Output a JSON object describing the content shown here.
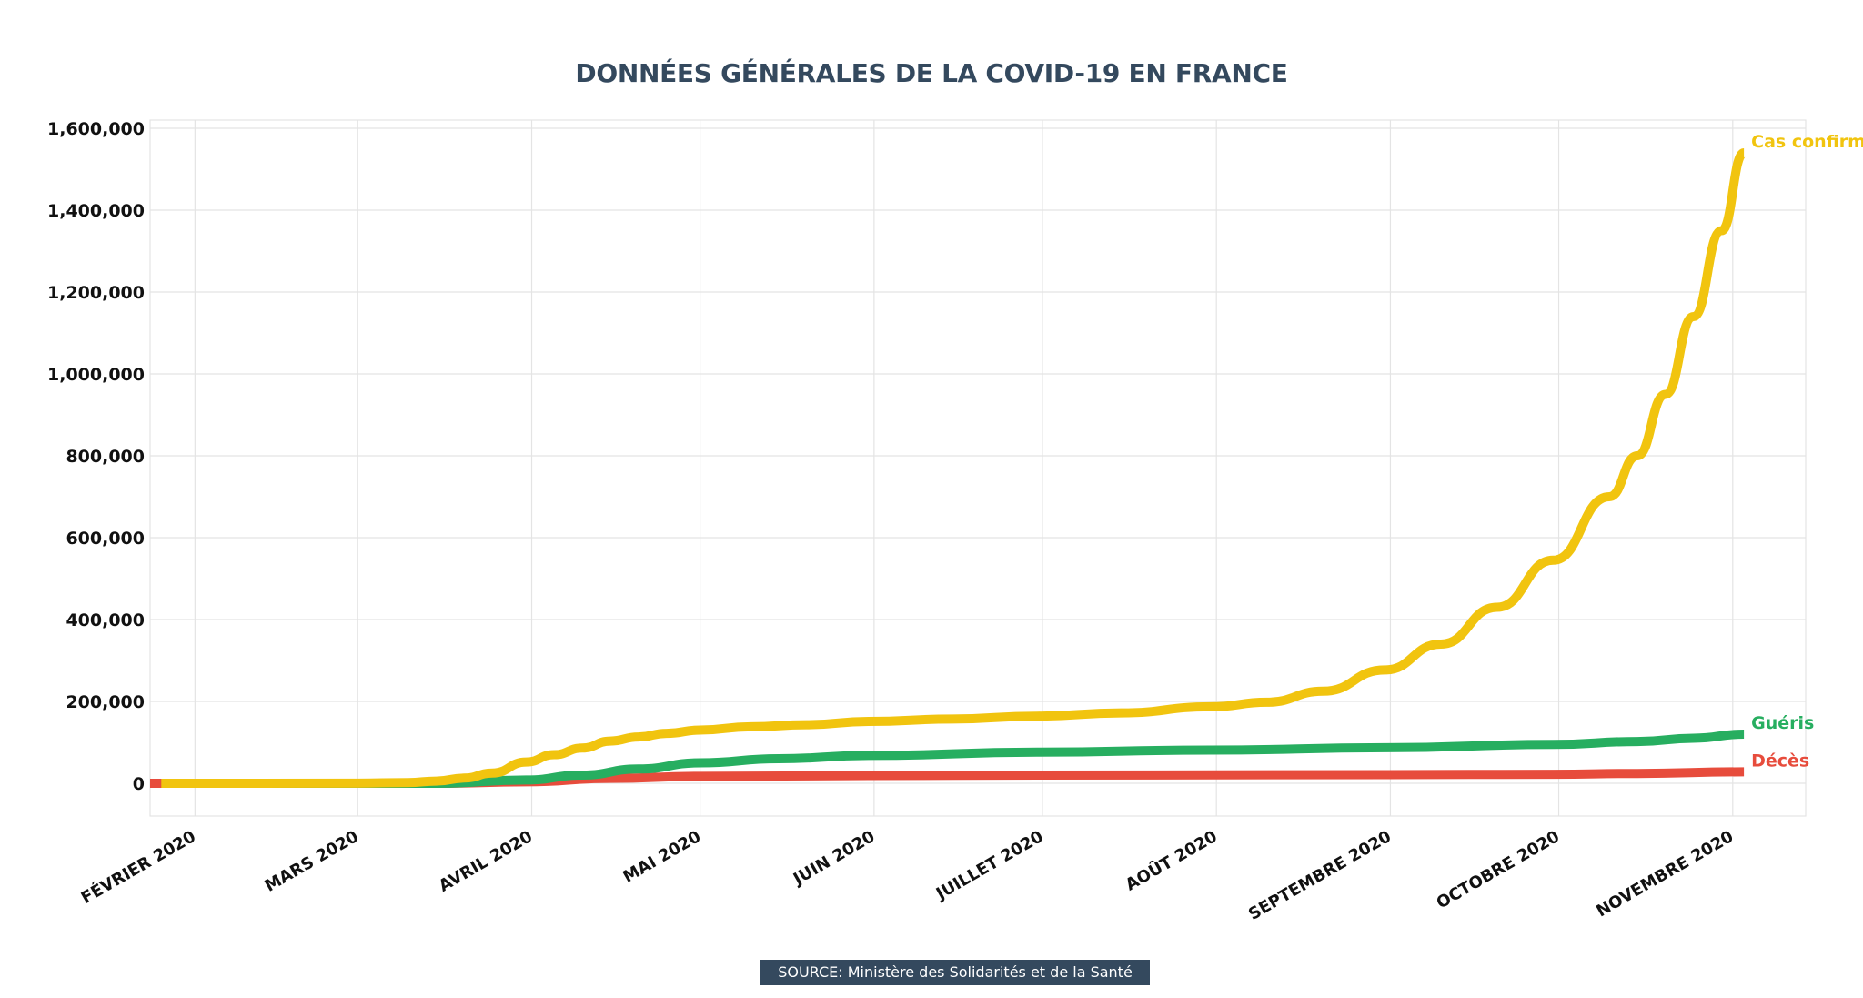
{
  "title": "DONNÉES GÉNÉRALES DE LA COVID-19 EN FRANCE",
  "source": "SOURCE: Ministère des Solidarités et de la Santé",
  "colors": {
    "title": "#34495e",
    "cas_confirmes": "#f1c40f",
    "gueris": "#27ae60",
    "deces": "#e74c3c",
    "source_bg": "#34495e"
  },
  "chart_data": {
    "type": "line",
    "title": "DONNÉES GÉNÉRALES DE LA COVID-19 EN FRANCE",
    "xlabel": "",
    "ylabel": "",
    "x_range": [
      "2020-01-24",
      "2020-11-14"
    ],
    "ylim": [
      -80000,
      1620000
    ],
    "y_ticks": [
      0,
      200000,
      400000,
      600000,
      800000,
      1000000,
      1200000,
      1400000,
      1600000
    ],
    "y_tick_labels": [
      "0",
      "200,000",
      "400,000",
      "600,000",
      "800,000",
      "1,000,000",
      "1,200,000",
      "1,400,000",
      "1,600,000"
    ],
    "x_ticks": [
      "2020-02-01",
      "2020-03-01",
      "2020-04-01",
      "2020-05-01",
      "2020-06-01",
      "2020-07-01",
      "2020-08-01",
      "2020-09-01",
      "2020-10-01",
      "2020-11-01"
    ],
    "x_tick_labels": [
      "FÉVRIER 2020",
      "MARS 2020",
      "AVRIL 2020",
      "MAI 2020",
      "JUIN 2020",
      "JUILLET 2020",
      "AOÛT 2020",
      "SEPTEMBRE 2020",
      "OCTOBRE 2020",
      "NOVEMBRE 2020"
    ],
    "grid": true,
    "legend": "labels at line ends",
    "series": [
      {
        "name": "Cas confirmés",
        "color": "#f1c40f",
        "points": [
          [
            "2020-01-26",
            0
          ],
          [
            "2020-03-01",
            130
          ],
          [
            "2020-03-10",
            1800
          ],
          [
            "2020-03-15",
            5400
          ],
          [
            "2020-03-20",
            12600
          ],
          [
            "2020-03-25",
            25200
          ],
          [
            "2020-03-31",
            52000
          ],
          [
            "2020-04-05",
            70000
          ],
          [
            "2020-04-10",
            86000
          ],
          [
            "2020-04-15",
            103000
          ],
          [
            "2020-04-20",
            113000
          ],
          [
            "2020-04-25",
            122000
          ],
          [
            "2020-05-01",
            130000
          ],
          [
            "2020-05-10",
            138000
          ],
          [
            "2020-05-20",
            143000
          ],
          [
            "2020-05-31",
            151000
          ],
          [
            "2020-06-15",
            157000
          ],
          [
            "2020-06-30",
            164000
          ],
          [
            "2020-07-15",
            172000
          ],
          [
            "2020-07-31",
            187000
          ],
          [
            "2020-08-10",
            198000
          ],
          [
            "2020-08-20",
            225000
          ],
          [
            "2020-08-31",
            277000
          ],
          [
            "2020-09-10",
            340000
          ],
          [
            "2020-09-20",
            430000
          ],
          [
            "2020-09-30",
            545000
          ],
          [
            "2020-10-10",
            700000
          ],
          [
            "2020-10-15",
            800000
          ],
          [
            "2020-10-20",
            950000
          ],
          [
            "2020-10-25",
            1140000
          ],
          [
            "2020-10-30",
            1350000
          ],
          [
            "2020-11-03",
            1540000
          ]
        ]
      },
      {
        "name": "Guéris",
        "color": "#27ae60",
        "points": [
          [
            "2020-01-27",
            0
          ],
          [
            "2020-03-15",
            0
          ],
          [
            "2020-03-31",
            8000
          ],
          [
            "2020-04-10",
            20000
          ],
          [
            "2020-04-20",
            35000
          ],
          [
            "2020-05-01",
            50000
          ],
          [
            "2020-05-15",
            60000
          ],
          [
            "2020-05-31",
            68000
          ],
          [
            "2020-06-30",
            76000
          ],
          [
            "2020-07-31",
            81000
          ],
          [
            "2020-08-31",
            87000
          ],
          [
            "2020-09-30",
            95000
          ],
          [
            "2020-10-15",
            102000
          ],
          [
            "2020-10-25",
            110000
          ],
          [
            "2020-11-03",
            120000
          ]
        ]
      },
      {
        "name": "Décès",
        "color": "#e74c3c",
        "points": [
          [
            "2020-01-24",
            0
          ],
          [
            "2020-03-15",
            0
          ],
          [
            "2020-03-31",
            3500
          ],
          [
            "2020-04-15",
            12000
          ],
          [
            "2020-05-01",
            17000
          ],
          [
            "2020-05-31",
            19000
          ],
          [
            "2020-06-30",
            20000
          ],
          [
            "2020-08-31",
            21000
          ],
          [
            "2020-09-30",
            22000
          ],
          [
            "2020-10-15",
            24000
          ],
          [
            "2020-11-03",
            28000
          ]
        ]
      }
    ]
  }
}
